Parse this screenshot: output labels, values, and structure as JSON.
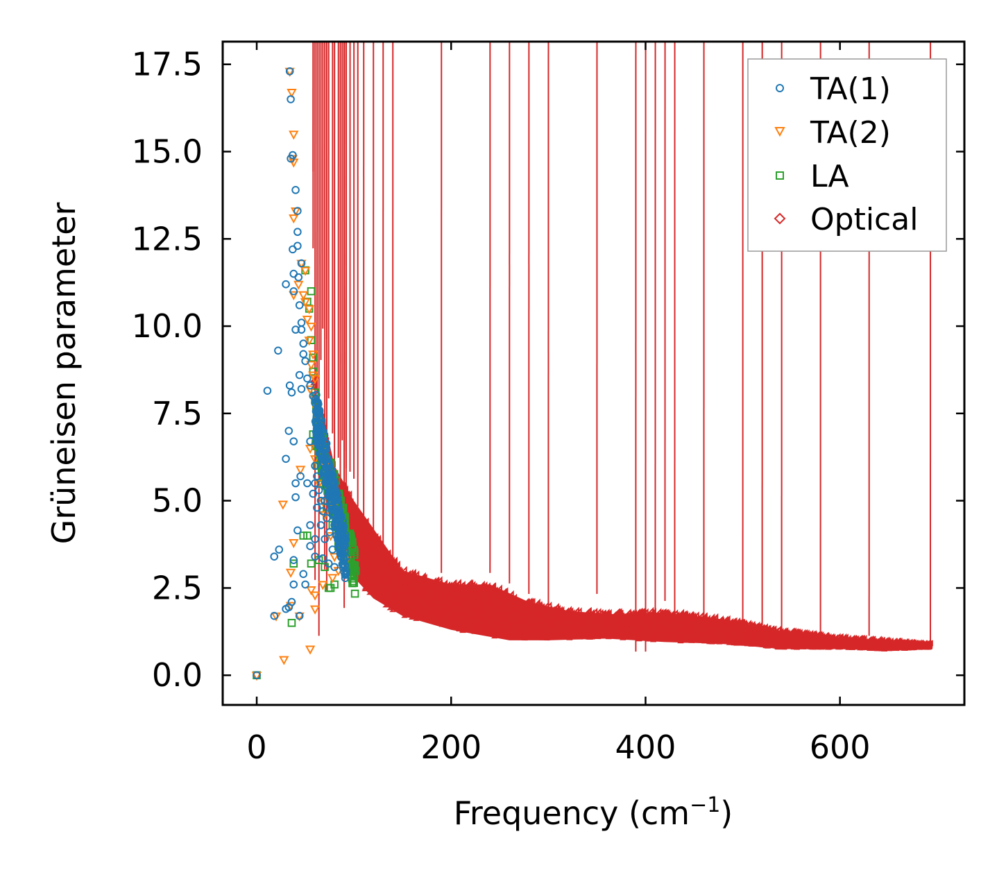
{
  "chart_data": {
    "type": "scatter",
    "xlabel": "Frequency (cm",
    "xlabel_superscript": "−1",
    "xlabel_suffix": ")",
    "ylabel": "Grüneisen parameter",
    "xlim": [
      -35,
      728
    ],
    "ylim": [
      -0.85,
      18.15
    ],
    "x_ticks": [
      0,
      200,
      400,
      600
    ],
    "x_tick_labels": [
      "0",
      "200",
      "400",
      "600"
    ],
    "y_ticks": [
      0,
      2.5,
      5,
      7.5,
      10,
      12.5,
      15,
      17.5
    ],
    "y_tick_labels": [
      "0.0",
      "2.5",
      "5.0",
      "7.5",
      "10.0",
      "12.5",
      "15.0",
      "17.5"
    ],
    "legend_position": "top-right",
    "series": [
      {
        "name": "TA(1)",
        "marker": "circle",
        "color": "#1f77b4",
        "points": [
          [
            0,
            0
          ],
          [
            34,
            17.3
          ],
          [
            35,
            16.5
          ],
          [
            35,
            14.8
          ],
          [
            37,
            14.9
          ],
          [
            40,
            13.9
          ],
          [
            42,
            13.3
          ],
          [
            42,
            12.7
          ],
          [
            37,
            12.2
          ],
          [
            42,
            12.3
          ],
          [
            46,
            11.8
          ],
          [
            38,
            11.5
          ],
          [
            43,
            11.4
          ],
          [
            30,
            11.2
          ],
          [
            38,
            11.0
          ],
          [
            44,
            10.6
          ],
          [
            46,
            10.1
          ],
          [
            40,
            9.9
          ],
          [
            46,
            9.9
          ],
          [
            48,
            9.5
          ],
          [
            22,
            9.3
          ],
          [
            48,
            9.2
          ],
          [
            50,
            9.0
          ],
          [
            44,
            8.6
          ],
          [
            52,
            8.5
          ],
          [
            11,
            8.15
          ],
          [
            34,
            8.3
          ],
          [
            36,
            8.1
          ],
          [
            46,
            8.2
          ],
          [
            55,
            8.3
          ],
          [
            58,
            8.0
          ],
          [
            60,
            7.8
          ],
          [
            62,
            7.5
          ],
          [
            64,
            7.1
          ],
          [
            33,
            7.0
          ],
          [
            38,
            6.7
          ],
          [
            55,
            6.7
          ],
          [
            62,
            6.7
          ],
          [
            66,
            6.6
          ],
          [
            67,
            6.3
          ],
          [
            30,
            6.2
          ],
          [
            60,
            6.0
          ],
          [
            68,
            6.1
          ],
          [
            70,
            5.7
          ],
          [
            62,
            5.7
          ],
          [
            45,
            5.7
          ],
          [
            40,
            5.5
          ],
          [
            52,
            5.5
          ],
          [
            60,
            5.5
          ],
          [
            72,
            5.4
          ],
          [
            64,
            5.3
          ],
          [
            74,
            5.2
          ],
          [
            58,
            5.2
          ],
          [
            40,
            5.1
          ],
          [
            66,
            5.0
          ],
          [
            70,
            5.0
          ],
          [
            76,
            4.9
          ],
          [
            62,
            4.8
          ],
          [
            68,
            4.7
          ],
          [
            78,
            4.6
          ],
          [
            72,
            4.5
          ],
          [
            55,
            4.3
          ],
          [
            66,
            4.3
          ],
          [
            80,
            4.3
          ],
          [
            42,
            4.15
          ],
          [
            75,
            4.1
          ],
          [
            82,
            4.0
          ],
          [
            60,
            3.9
          ],
          [
            70,
            3.9
          ],
          [
            85,
            3.8
          ],
          [
            55,
            3.7
          ],
          [
            78,
            3.6
          ],
          [
            23,
            3.6
          ],
          [
            88,
            3.5
          ],
          [
            18,
            3.4
          ],
          [
            60,
            3.4
          ],
          [
            68,
            3.35
          ],
          [
            90,
            3.3
          ],
          [
            38,
            3.3
          ],
          [
            74,
            3.2
          ],
          [
            80,
            3.1
          ],
          [
            92,
            3.0
          ],
          [
            48,
            2.9
          ],
          [
            38,
            2.6
          ],
          [
            50,
            2.6
          ],
          [
            36,
            2.1
          ],
          [
            30,
            1.9
          ],
          [
            33,
            1.95
          ],
          [
            18,
            1.7
          ],
          [
            44,
            1.7
          ]
        ]
      },
      {
        "name": "TA(2)",
        "marker": "triangle-down",
        "color": "#ff7f0e",
        "points": [
          [
            0,
            0
          ],
          [
            34,
            17.3
          ],
          [
            36,
            16.7
          ],
          [
            38,
            15.5
          ],
          [
            37,
            14.8
          ],
          [
            38,
            14.7
          ],
          [
            40,
            13.3
          ],
          [
            38,
            13.1
          ],
          [
            46,
            11.8
          ],
          [
            50,
            11.6
          ],
          [
            43,
            11.2
          ],
          [
            38,
            10.9
          ],
          [
            48,
            10.9
          ],
          [
            50,
            10.7
          ],
          [
            54,
            10.5
          ],
          [
            52,
            10.2
          ],
          [
            56,
            10.0
          ],
          [
            54,
            9.6
          ],
          [
            58,
            9.2
          ],
          [
            56,
            8.9
          ],
          [
            58,
            8.6
          ],
          [
            60,
            8.5
          ],
          [
            55,
            8.2
          ],
          [
            60,
            7.9
          ],
          [
            62,
            7.6
          ],
          [
            63,
            7.3
          ],
          [
            64,
            7.0
          ],
          [
            66,
            6.7
          ],
          [
            55,
            6.5
          ],
          [
            68,
            6.4
          ],
          [
            60,
            6.2
          ],
          [
            70,
            6.0
          ],
          [
            45,
            5.9
          ],
          [
            72,
            5.7
          ],
          [
            64,
            5.5
          ],
          [
            74,
            5.4
          ],
          [
            76,
            5.1
          ],
          [
            68,
            5.0
          ],
          [
            27,
            4.9
          ],
          [
            78,
            4.8
          ],
          [
            70,
            4.6
          ],
          [
            82,
            4.4
          ],
          [
            85,
            4.2
          ],
          [
            76,
            4.0
          ],
          [
            38,
            3.8
          ],
          [
            88,
            3.7
          ],
          [
            80,
            3.4
          ],
          [
            92,
            3.3
          ],
          [
            84,
            3.0
          ],
          [
            35,
            2.95
          ],
          [
            78,
            2.8
          ],
          [
            68,
            2.6
          ],
          [
            56,
            2.45
          ],
          [
            60,
            2.3
          ],
          [
            35,
            2.0
          ],
          [
            60,
            1.9
          ],
          [
            20,
            1.7
          ],
          [
            44,
            1.7
          ],
          [
            28,
            0.45
          ],
          [
            55,
            0.75
          ]
        ]
      },
      {
        "name": "LA",
        "marker": "square",
        "color": "#2ca02c",
        "points": [
          [
            0,
            0
          ],
          [
            56,
            11.0
          ],
          [
            50,
            11.6
          ],
          [
            52,
            10.7
          ],
          [
            54,
            10.5
          ],
          [
            56,
            9.6
          ],
          [
            58,
            9.1
          ],
          [
            58,
            8.7
          ],
          [
            60,
            8.1
          ],
          [
            60,
            7.9
          ],
          [
            62,
            7.5
          ],
          [
            63,
            7.1
          ],
          [
            64,
            6.8
          ],
          [
            66,
            6.5
          ],
          [
            68,
            6.2
          ],
          [
            70,
            5.9
          ],
          [
            72,
            5.6
          ],
          [
            74,
            5.3
          ],
          [
            76,
            5.1
          ],
          [
            78,
            4.9
          ],
          [
            80,
            4.6
          ],
          [
            82,
            4.4
          ],
          [
            84,
            4.2
          ],
          [
            86,
            4.0
          ],
          [
            88,
            3.8
          ],
          [
            90,
            3.6
          ],
          [
            92,
            3.4
          ],
          [
            94,
            3.2
          ],
          [
            96,
            3.1
          ],
          [
            98,
            2.95
          ],
          [
            100,
            2.9
          ],
          [
            58,
            6.9
          ],
          [
            62,
            6.0
          ],
          [
            66,
            5.5
          ],
          [
            72,
            4.8
          ],
          [
            78,
            4.3
          ],
          [
            84,
            3.7
          ],
          [
            90,
            3.3
          ],
          [
            96,
            3.0
          ],
          [
            48,
            4.0
          ],
          [
            52,
            4.0
          ],
          [
            64,
            3.3
          ],
          [
            70,
            3.1
          ],
          [
            56,
            3.2
          ],
          [
            76,
            2.5
          ],
          [
            80,
            2.6
          ],
          [
            74,
            2.5
          ],
          [
            38,
            3.2
          ],
          [
            36,
            1.5
          ]
        ]
      }
    ],
    "optical": {
      "name": "Optical",
      "marker": "diamond",
      "color": "#d62728",
      "band_lower": [
        [
          60,
          8.5
        ],
        [
          80,
          5.0
        ],
        [
          100,
          2.8
        ],
        [
          120,
          2.2
        ],
        [
          150,
          1.7
        ],
        [
          200,
          1.3
        ],
        [
          260,
          1.0
        ],
        [
          300,
          1.0
        ],
        [
          360,
          1.05
        ],
        [
          420,
          0.95
        ],
        [
          480,
          0.9
        ],
        [
          540,
          0.75
        ],
        [
          600,
          0.75
        ],
        [
          650,
          0.7
        ],
        [
          690,
          0.75
        ]
      ],
      "band_upper": [
        [
          60,
          8.5
        ],
        [
          80,
          6.0
        ],
        [
          100,
          5.0
        ],
        [
          120,
          4.2
        ],
        [
          150,
          3.0
        ],
        [
          200,
          2.6
        ],
        [
          240,
          2.6
        ],
        [
          280,
          2.1
        ],
        [
          320,
          1.85
        ],
        [
          360,
          1.75
        ],
        [
          420,
          1.8
        ],
        [
          480,
          1.6
        ],
        [
          540,
          1.25
        ],
        [
          600,
          1.05
        ],
        [
          650,
          0.95
        ],
        [
          690,
          0.85
        ]
      ],
      "outliers": [
        [
          58,
          14.3
        ],
        [
          58,
          12.1
        ],
        [
          68,
          9.8
        ],
        [
          72,
          9.5
        ],
        [
          66,
          8.9
        ],
        [
          62,
          8.0
        ],
        [
          74,
          7.8
        ],
        [
          78,
          6.8
        ],
        [
          88,
          6.6
        ],
        [
          90,
          6.3
        ],
        [
          84,
          6.1
        ],
        [
          96,
          5.7
        ],
        [
          100,
          5.5
        ],
        [
          90,
          5.2
        ],
        [
          92,
          5.8
        ],
        [
          80,
          5.5
        ],
        [
          86,
          4.6
        ],
        [
          104,
          4.7
        ],
        [
          110,
          4.2
        ],
        [
          92,
          4.4
        ],
        [
          90,
          1.8
        ],
        [
          72,
          2.3
        ],
        [
          64,
          1.0
        ],
        [
          86,
          3.0
        ],
        [
          70,
          2.9
        ],
        [
          60,
          2.6
        ],
        [
          120,
          3.8
        ],
        [
          130,
          3.5
        ],
        [
          140,
          3.2
        ],
        [
          240,
          2.8
        ],
        [
          260,
          2.5
        ],
        [
          350,
          2.2
        ],
        [
          390,
          0.55
        ],
        [
          400,
          0.55
        ],
        [
          410,
          0.9
        ],
        [
          430,
          0.95
        ],
        [
          500,
          0.8
        ],
        [
          540,
          0.65
        ],
        [
          420,
          2.0
        ],
        [
          190,
          2.8
        ],
        [
          280,
          2.2
        ],
        [
          300,
          1.8
        ],
        [
          460,
          1.6
        ],
        [
          520,
          1.3
        ],
        [
          580,
          1.1
        ],
        [
          630,
          1.0
        ],
        [
          693,
          0.8
        ]
      ]
    }
  }
}
